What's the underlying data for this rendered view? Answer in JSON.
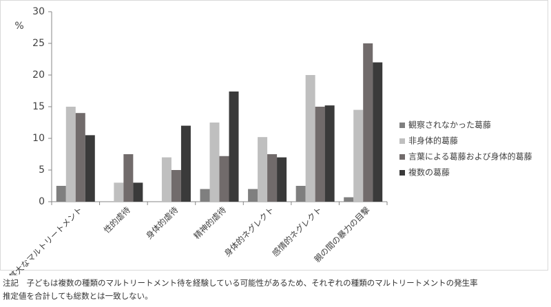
{
  "chart_data": {
    "type": "bar",
    "y_label": "%",
    "categories": [
      "甚大なマルトリートメント",
      "性的虐待",
      "身体的虐待",
      "精神的虐待",
      "身体的ネグレクト",
      "感情的ネグレクト",
      "親の間の暴力の目撃"
    ],
    "series": [
      {
        "name": "観察されなかった葛藤",
        "color": "#7f7f7f",
        "values": [
          2.5,
          0,
          0,
          2,
          2,
          2.5,
          0.7
        ]
      },
      {
        "name": "非身体的葛藤",
        "color": "#bfbfbf",
        "values": [
          15,
          3,
          7,
          12.5,
          10.2,
          20,
          14.5
        ]
      },
      {
        "name": "言葉による葛藤および身体的葛藤",
        "color": "#716b6b",
        "values": [
          14,
          7.5,
          5,
          7.2,
          7.5,
          15,
          25
        ]
      },
      {
        "name": "複数の葛藤",
        "color": "#3a3a3a",
        "values": [
          10.5,
          3,
          12,
          17.4,
          7,
          15.2,
          22
        ]
      }
    ],
    "ylim": [
      0,
      30
    ],
    "yticks": [
      0,
      5,
      10,
      15,
      20,
      25,
      30
    ],
    "grid": false
  },
  "note": [
    "注記　子どもは複数の種類のマルトリートメント待を経験している可能性があるため、それぞれの種類のマルトリートメントの発生率",
    "推定値を合計しても総数とは一致しない。"
  ]
}
